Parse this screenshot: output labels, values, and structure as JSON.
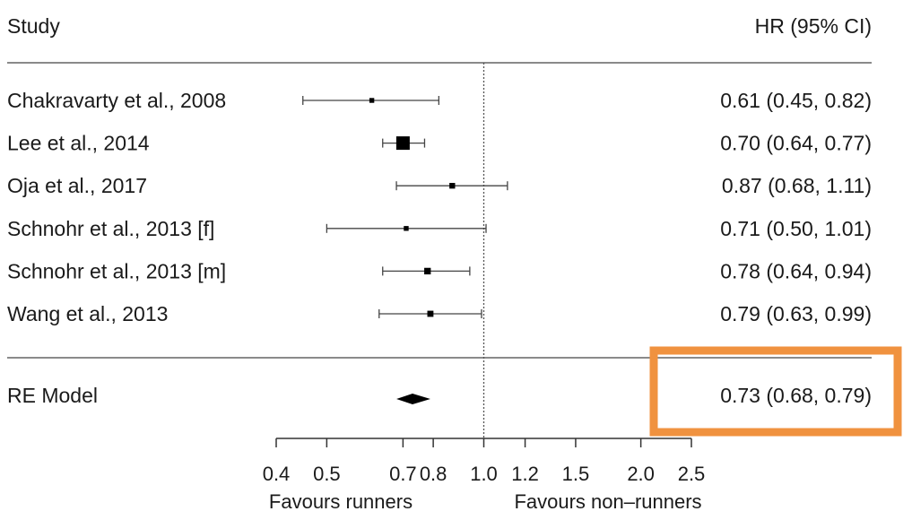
{
  "chart_data": {
    "type": "forest",
    "title": "",
    "header": {
      "study": "Study",
      "estimate": "HR (95% CI)"
    },
    "x_scale": "log",
    "xlim": [
      0.4,
      2.5
    ],
    "reference_line": 1.0,
    "x_ticks": [
      0.4,
      0.5,
      0.7,
      0.8,
      1.0,
      1.2,
      1.5,
      2.0,
      2.5
    ],
    "x_tick_labels": [
      "0.4",
      "0.5",
      "0.7",
      "0.8",
      "1.0",
      "1.2",
      "1.5",
      "2.0",
      "2.5"
    ],
    "favours_left": "Favours runners",
    "favours_right": "Favours non–runners",
    "studies": [
      {
        "name": "Chakravarty et al., 2008",
        "hr": 0.61,
        "lo": 0.45,
        "hi": 0.82,
        "label": "0.61 (0.45, 0.82)",
        "weight": 1
      },
      {
        "name": "Lee et al., 2014",
        "hr": 0.7,
        "lo": 0.64,
        "hi": 0.77,
        "label": "0.70 (0.64, 0.77)",
        "weight": 5
      },
      {
        "name": "Oja et al., 2017",
        "hr": 0.87,
        "lo": 0.68,
        "hi": 1.11,
        "label": "0.87 (0.68, 1.11)",
        "weight": 1.4
      },
      {
        "name": "Schnohr et al., 2013 [f]",
        "hr": 0.71,
        "lo": 0.5,
        "hi": 1.01,
        "label": "0.71 (0.50, 1.01)",
        "weight": 1
      },
      {
        "name": "Schnohr et al., 2013 [m]",
        "hr": 0.78,
        "lo": 0.64,
        "hi": 0.94,
        "label": "0.78 (0.64, 0.94)",
        "weight": 1.8
      },
      {
        "name": "Wang et al., 2013",
        "hr": 0.79,
        "lo": 0.63,
        "hi": 0.99,
        "label": "0.79 (0.63, 0.99)",
        "weight": 1.6
      }
    ],
    "summary": {
      "name": "RE Model",
      "hr": 0.73,
      "lo": 0.68,
      "hi": 0.79,
      "label": "0.73 (0.68, 0.79)"
    },
    "highlight_color": "#f0923f"
  }
}
